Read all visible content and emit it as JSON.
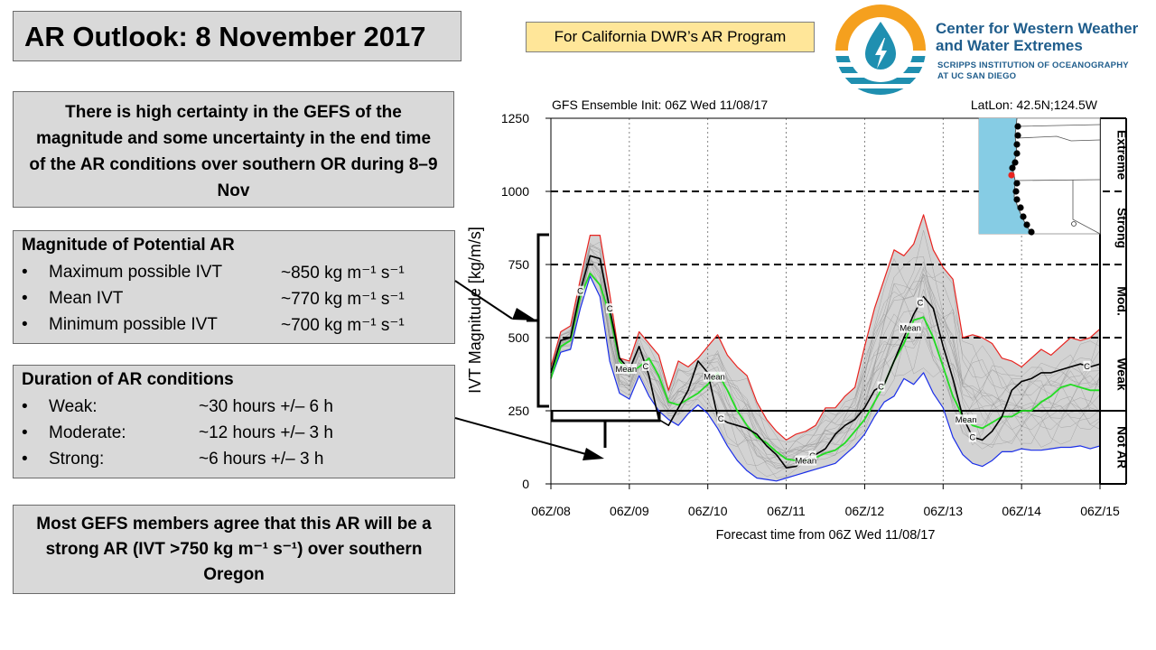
{
  "header": {
    "title": "AR Outlook: 8 November 2017",
    "program_tag": "For California DWR’s AR Program"
  },
  "logo": {
    "name_line1": "Center for Western Weather",
    "name_line2": "and Water Extremes",
    "sub_line1": "SCRIPPS INSTITUTION OF OCEANOGRAPHY",
    "sub_line2": "AT UC SAN DIEGO"
  },
  "certainty": {
    "text": "There is high certainty in the GEFS of the magnitude and some uncertainty in the end time of the AR conditions over southern OR during 8–9 Nov"
  },
  "magnitude": {
    "heading": "Magnitude of Potential AR",
    "bullet": "•",
    "rows": [
      {
        "label": "Maximum possible IVT",
        "value": "~850 kg m⁻¹ s⁻¹"
      },
      {
        "label": "Mean IVT",
        "value": "~770 kg m⁻¹ s⁻¹"
      },
      {
        "label": "Minimum possible IVT",
        "value": "~700 kg m⁻¹ s⁻¹"
      }
    ]
  },
  "duration": {
    "heading": "Duration of AR conditions",
    "bullet": "•",
    "rows": [
      {
        "label": "Weak:",
        "value": "~30 hours +/– 6 h"
      },
      {
        "label": "Moderate:",
        "value": "~12 hours +/– 3 h"
      },
      {
        "label": "Strong:",
        "value": "~6 hours +/– 3 h"
      }
    ]
  },
  "consensus": {
    "text": "Most GEFS members agree that this AR will be a strong AR (IVT >750 kg m⁻¹ s⁻¹) over southern Oregon"
  },
  "colors": {
    "max_line": "#e8231f",
    "min_line": "#1a2ee8",
    "mean_line": "#22dd22",
    "control_line": "#000000",
    "spread_fill": "#d3d3d3",
    "member_line": "#9a9a9a",
    "map_ocean": "#86cce4"
  },
  "chart_data": {
    "type": "line",
    "title_left": "GFS Ensemble Init: 06Z Wed 11/08/17",
    "title_right": "LatLon: 42.5N;124.5W",
    "xlabel": "Forecast time from 06Z Wed 11/08/17",
    "ylabel": "IVT Magnitude [kg/m/s]",
    "x_unit": "forecast hour",
    "xlim": [
      0,
      168
    ],
    "ylim": [
      0,
      1250
    ],
    "x_ticks": [
      0,
      24,
      48,
      72,
      96,
      120,
      144,
      168
    ],
    "x_tick_labels": [
      "06Z/08",
      "06Z/09",
      "06Z/10",
      "06Z/11",
      "06Z/12",
      "06Z/13",
      "06Z/14",
      "06Z/15"
    ],
    "y_ticks": [
      0,
      250,
      500,
      750,
      1000,
      1250
    ],
    "thresholds": [
      {
        "value": 250,
        "style": "solid"
      },
      {
        "value": 500,
        "style": "dashed"
      },
      {
        "value": 750,
        "style": "dashed"
      },
      {
        "value": 1000,
        "style": "dashed"
      }
    ],
    "categories": [
      {
        "label": "Not AR",
        "from": 0,
        "to": 250
      },
      {
        "label": "Weak",
        "from": 250,
        "to": 500
      },
      {
        "label": "Mod.",
        "from": 500,
        "to": 750
      },
      {
        "label": "Strong",
        "from": 750,
        "to": 1000
      },
      {
        "label": "Extreme",
        "from": 1000,
        "to": 1250
      }
    ],
    "series": [
      {
        "name": "Max",
        "role": "max",
        "x": [
          0,
          3,
          6,
          9,
          12,
          15,
          18,
          21,
          24,
          27,
          30,
          33,
          36,
          39,
          42,
          45,
          48,
          51,
          54,
          57,
          60,
          63,
          66,
          69,
          72,
          75,
          78,
          81,
          84,
          87,
          90,
          93,
          96,
          99,
          102,
          105,
          108,
          111,
          114,
          117,
          120,
          123,
          126,
          129,
          132,
          135,
          138,
          141,
          144,
          147,
          150,
          153,
          156,
          159,
          162,
          165,
          168
        ],
        "values": [
          400,
          520,
          540,
          700,
          850,
          850,
          650,
          430,
          420,
          520,
          480,
          440,
          320,
          420,
          400,
          430,
          470,
          510,
          440,
          400,
          370,
          280,
          220,
          180,
          150,
          170,
          180,
          200,
          260,
          260,
          300,
          330,
          470,
          600,
          700,
          800,
          780,
          820,
          920,
          800,
          740,
          700,
          500,
          510,
          500,
          480,
          430,
          420,
          400,
          430,
          460,
          440,
          470,
          500,
          490,
          500,
          530
        ]
      },
      {
        "name": "Mean",
        "role": "mean",
        "x": [
          0,
          3,
          6,
          9,
          12,
          15,
          18,
          21,
          24,
          27,
          30,
          33,
          36,
          39,
          42,
          45,
          48,
          51,
          54,
          57,
          60,
          63,
          66,
          69,
          72,
          75,
          78,
          81,
          84,
          87,
          90,
          93,
          96,
          99,
          102,
          105,
          108,
          111,
          114,
          117,
          120,
          123,
          126,
          129,
          132,
          135,
          138,
          141,
          144,
          147,
          150,
          153,
          156,
          159,
          162,
          165,
          168
        ],
        "values": [
          360,
          470,
          490,
          640,
          720,
          680,
          580,
          420,
          380,
          400,
          430,
          370,
          280,
          270,
          290,
          310,
          340,
          380,
          320,
          250,
          200,
          160,
          140,
          110,
          85,
          80,
          80,
          90,
          105,
          115,
          140,
          180,
          220,
          280,
          340,
          420,
          480,
          560,
          570,
          500,
          400,
          300,
          230,
          200,
          190,
          210,
          230,
          230,
          250,
          250,
          280,
          300,
          330,
          340,
          330,
          320,
          320
        ]
      },
      {
        "name": "Control",
        "role": "control",
        "x": [
          0,
          3,
          6,
          9,
          12,
          15,
          18,
          21,
          24,
          27,
          30,
          33,
          36,
          39,
          42,
          45,
          48,
          51,
          54,
          57,
          60,
          63,
          66,
          69,
          72,
          75,
          78,
          81,
          84,
          87,
          90,
          93,
          96,
          99,
          102,
          105,
          108,
          111,
          114,
          117,
          120,
          123,
          126,
          129,
          132,
          135,
          138,
          141,
          144,
          147,
          150,
          153,
          156,
          159,
          162,
          165,
          168
        ],
        "values": [
          380,
          490,
          500,
          660,
          780,
          770,
          600,
          430,
          390,
          470,
          370,
          220,
          200,
          260,
          320,
          420,
          380,
          230,
          210,
          200,
          190,
          170,
          130,
          100,
          55,
          60,
          90,
          100,
          120,
          170,
          200,
          220,
          260,
          320,
          340,
          420,
          500,
          580,
          640,
          600,
          470,
          360,
          230,
          160,
          150,
          180,
          230,
          320,
          350,
          360,
          380,
          380,
          390,
          400,
          410,
          400,
          410
        ]
      },
      {
        "name": "Min",
        "role": "min",
        "x": [
          0,
          3,
          6,
          9,
          12,
          15,
          18,
          21,
          24,
          27,
          30,
          33,
          36,
          39,
          42,
          45,
          48,
          51,
          54,
          57,
          60,
          63,
          66,
          69,
          72,
          75,
          78,
          81,
          84,
          87,
          90,
          93,
          96,
          99,
          102,
          105,
          108,
          111,
          114,
          117,
          120,
          123,
          126,
          129,
          132,
          135,
          138,
          141,
          144,
          147,
          150,
          153,
          156,
          159,
          162,
          165,
          168
        ],
        "values": [
          360,
          450,
          460,
          600,
          710,
          640,
          420,
          310,
          290,
          370,
          300,
          250,
          220,
          200,
          240,
          270,
          240,
          190,
          130,
          80,
          45,
          20,
          15,
          10,
          20,
          30,
          40,
          50,
          60,
          70,
          100,
          130,
          170,
          230,
          280,
          300,
          360,
          340,
          380,
          310,
          260,
          160,
          100,
          70,
          60,
          80,
          110,
          110,
          120,
          115,
          115,
          120,
          125,
          125,
          130,
          120,
          130
        ]
      }
    ],
    "member_count": 20,
    "line_labels": [
      {
        "text": "C",
        "series": "Control",
        "x": [
          9,
          18,
          29,
          52,
          80,
          101,
          113,
          129,
          164
        ]
      },
      {
        "text": "Mean",
        "series": "Mean",
        "x": [
          23,
          50,
          78,
          110,
          127
        ]
      }
    ]
  }
}
